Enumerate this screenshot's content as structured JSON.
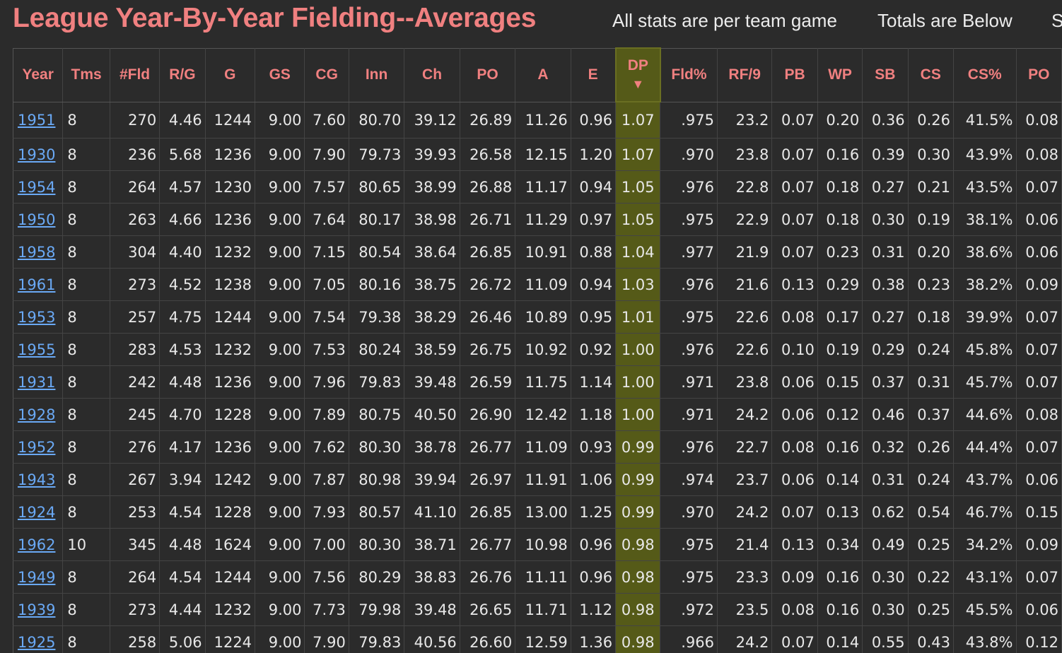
{
  "header": {
    "title": "League Year-By-Year Fielding--Averages",
    "links": [
      "All stats are per team game",
      "Totals are Below",
      "S"
    ]
  },
  "table": {
    "columns": [
      "Year",
      "Tms",
      "#Fld",
      "R/G",
      "G",
      "GS",
      "CG",
      "Inn",
      "Ch",
      "PO",
      "A",
      "E",
      "DP",
      "Fld%",
      "RF/9",
      "PB",
      "WP",
      "SB",
      "CS",
      "CS%",
      "PO"
    ],
    "sorted_column": "DP",
    "sort_indicator": "▼",
    "sorted_color": "#555a18",
    "title_color": "#f08080",
    "link_color": "#6aa9f5",
    "rows": [
      [
        "1951",
        "8",
        "270",
        "4.46",
        "1244",
        "9.00",
        "7.60",
        "80.70",
        "39.12",
        "26.89",
        "11.26",
        "0.96",
        "1.07",
        ".975",
        "23.2",
        "0.07",
        "0.20",
        "0.36",
        "0.26",
        "41.5%",
        "0.08"
      ],
      [
        "1930",
        "8",
        "236",
        "5.68",
        "1236",
        "9.00",
        "7.90",
        "79.73",
        "39.93",
        "26.58",
        "12.15",
        "1.20",
        "1.07",
        ".970",
        "23.8",
        "0.07",
        "0.16",
        "0.39",
        "0.30",
        "43.9%",
        "0.08"
      ],
      [
        "1954",
        "8",
        "264",
        "4.57",
        "1230",
        "9.00",
        "7.57",
        "80.65",
        "38.99",
        "26.88",
        "11.17",
        "0.94",
        "1.05",
        ".976",
        "22.8",
        "0.07",
        "0.18",
        "0.27",
        "0.21",
        "43.5%",
        "0.07"
      ],
      [
        "1950",
        "8",
        "263",
        "4.66",
        "1236",
        "9.00",
        "7.64",
        "80.17",
        "38.98",
        "26.71",
        "11.29",
        "0.97",
        "1.05",
        ".975",
        "22.9",
        "0.07",
        "0.18",
        "0.30",
        "0.19",
        "38.1%",
        "0.06"
      ],
      [
        "1958",
        "8",
        "304",
        "4.40",
        "1232",
        "9.00",
        "7.15",
        "80.54",
        "38.64",
        "26.85",
        "10.91",
        "0.88",
        "1.04",
        ".977",
        "21.9",
        "0.07",
        "0.23",
        "0.31",
        "0.20",
        "38.6%",
        "0.06"
      ],
      [
        "1961",
        "8",
        "273",
        "4.52",
        "1238",
        "9.00",
        "7.05",
        "80.16",
        "38.75",
        "26.72",
        "11.09",
        "0.94",
        "1.03",
        ".976",
        "21.6",
        "0.13",
        "0.29",
        "0.38",
        "0.23",
        "38.2%",
        "0.09"
      ],
      [
        "1953",
        "8",
        "257",
        "4.75",
        "1244",
        "9.00",
        "7.54",
        "79.38",
        "38.29",
        "26.46",
        "10.89",
        "0.95",
        "1.01",
        ".975",
        "22.6",
        "0.08",
        "0.17",
        "0.27",
        "0.18",
        "39.9%",
        "0.07"
      ],
      [
        "1955",
        "8",
        "283",
        "4.53",
        "1232",
        "9.00",
        "7.53",
        "80.24",
        "38.59",
        "26.75",
        "10.92",
        "0.92",
        "1.00",
        ".976",
        "22.6",
        "0.10",
        "0.19",
        "0.29",
        "0.24",
        "45.8%",
        "0.07"
      ],
      [
        "1931",
        "8",
        "242",
        "4.48",
        "1236",
        "9.00",
        "7.96",
        "79.83",
        "39.48",
        "26.59",
        "11.75",
        "1.14",
        "1.00",
        ".971",
        "23.8",
        "0.06",
        "0.15",
        "0.37",
        "0.31",
        "45.7%",
        "0.07"
      ],
      [
        "1928",
        "8",
        "245",
        "4.70",
        "1228",
        "9.00",
        "7.89",
        "80.75",
        "40.50",
        "26.90",
        "12.42",
        "1.18",
        "1.00",
        ".971",
        "24.2",
        "0.06",
        "0.12",
        "0.46",
        "0.37",
        "44.6%",
        "0.08"
      ],
      [
        "1952",
        "8",
        "276",
        "4.17",
        "1236",
        "9.00",
        "7.62",
        "80.30",
        "38.78",
        "26.77",
        "11.09",
        "0.93",
        "0.99",
        ".976",
        "22.7",
        "0.08",
        "0.16",
        "0.32",
        "0.26",
        "44.4%",
        "0.07"
      ],
      [
        "1943",
        "8",
        "267",
        "3.94",
        "1242",
        "9.00",
        "7.87",
        "80.98",
        "39.94",
        "26.97",
        "11.91",
        "1.06",
        "0.99",
        ".974",
        "23.7",
        "0.06",
        "0.14",
        "0.31",
        "0.24",
        "43.7%",
        "0.06"
      ],
      [
        "1924",
        "8",
        "253",
        "4.54",
        "1228",
        "9.00",
        "7.93",
        "80.57",
        "41.10",
        "26.85",
        "13.00",
        "1.25",
        "0.99",
        ".970",
        "24.2",
        "0.07",
        "0.13",
        "0.62",
        "0.54",
        "46.7%",
        "0.15"
      ],
      [
        "1962",
        "10",
        "345",
        "4.48",
        "1624",
        "9.00",
        "7.00",
        "80.30",
        "38.71",
        "26.77",
        "10.98",
        "0.96",
        "0.98",
        ".975",
        "21.4",
        "0.13",
        "0.34",
        "0.49",
        "0.25",
        "34.2%",
        "0.09"
      ],
      [
        "1949",
        "8",
        "264",
        "4.54",
        "1244",
        "9.00",
        "7.56",
        "80.29",
        "38.83",
        "26.76",
        "11.11",
        "0.96",
        "0.98",
        ".975",
        "23.3",
        "0.09",
        "0.16",
        "0.30",
        "0.22",
        "43.1%",
        "0.07"
      ],
      [
        "1939",
        "8",
        "273",
        "4.44",
        "1232",
        "9.00",
        "7.73",
        "79.98",
        "39.48",
        "26.65",
        "11.71",
        "1.12",
        "0.98",
        ".972",
        "23.5",
        "0.08",
        "0.16",
        "0.30",
        "0.25",
        "45.5%",
        "0.06"
      ],
      [
        "1925",
        "8",
        "258",
        "5.06",
        "1224",
        "9.00",
        "7.90",
        "79.83",
        "40.56",
        "26.60",
        "12.59",
        "1.36",
        "0.98",
        ".966",
        "24.2",
        "0.07",
        "0.14",
        "0.55",
        "0.43",
        "43.8%",
        "0.12"
      ]
    ]
  }
}
